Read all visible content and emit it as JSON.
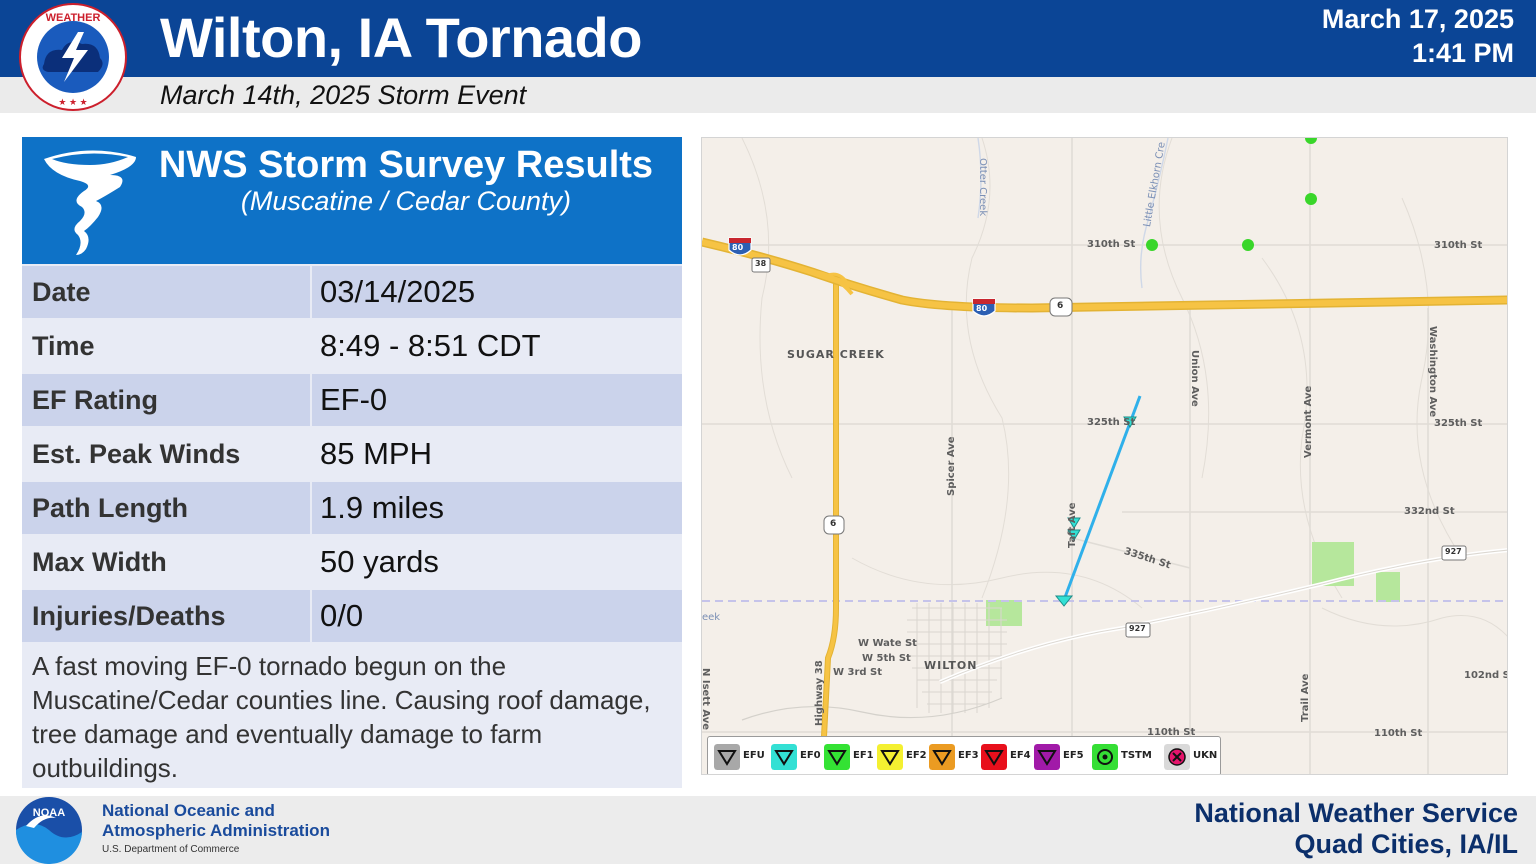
{
  "header": {
    "title": "Wilton, IA Tornado",
    "subtitle": "March 14th, 2025 Storm Event",
    "issued_date": "March 17, 2025",
    "issued_time": "1:41 PM",
    "logo_icon": "nws-logo-icon",
    "bar_color": "#0b4596"
  },
  "survey": {
    "title": "NWS Storm Survey Results",
    "subtitle": "(Muscatine / Cedar County)",
    "icon": "tornado-icon",
    "header_color": "#0e72c7",
    "rows": [
      {
        "label": "Date",
        "value": "03/14/2025"
      },
      {
        "label": "Time",
        "value": "8:49 - 8:51 CDT"
      },
      {
        "label": "EF Rating",
        "value": "EF-0"
      },
      {
        "label": "Est. Peak Winds",
        "value": "85 MPH"
      },
      {
        "label": "Path Length",
        "value": "1.9 miles"
      },
      {
        "label": "Max Width",
        "value": "50 yards"
      },
      {
        "label": "Injuries/Deaths",
        "value": "0/0"
      }
    ],
    "description": "A fast moving EF-0 tornado begun on the Muscatine/Cedar counties line.  Causing roof damage, tree damage and eventually damage to farm outbuildings."
  },
  "map": {
    "roads": {
      "r310": "310th St",
      "r310e": "310th St",
      "r325": "325th St",
      "r325e": "325th St",
      "r332": "332nd St",
      "r335": "335th St",
      "r102": "102nd S",
      "r110": "110th St",
      "r110e": "110th St",
      "spicer": "Spicer Ave",
      "taft": "Taft Ave",
      "union": "Union Ave",
      "vermont": "Vermont Ave",
      "washington": "Washington Ave",
      "trail": "Trail Ave",
      "hwy38": "Highway 38",
      "wwater": "W Wate St",
      "w5th": "W 5th St",
      "w3rd": "W 3rd St",
      "nisett": "N Isett Ave",
      "shield_i80": "80",
      "shield_i80b": "80",
      "shield_38": "38",
      "shield_6a": "6",
      "shield_6b": "6",
      "shield_927a": "927",
      "shield_927b": "927"
    },
    "water": {
      "otter": "Otter Creek",
      "elkhorn": "Little Elkhorn Cre",
      "eek": "eek"
    },
    "places": {
      "sugar_creek": "SUGAR CREEK",
      "wilton": "WILTON"
    },
    "colors": {
      "interstate": "#f6c344",
      "tornado_track": "#2fb0ea",
      "county_line": "#c5c3ea",
      "tstm_dot": "#39d62a",
      "park": "#b6e79c"
    },
    "legend": [
      {
        "label": "EFU",
        "color": "#a8a8a8",
        "type": "triangle"
      },
      {
        "label": "EF0",
        "color": "#33e0d4",
        "type": "triangle"
      },
      {
        "label": "EF1",
        "color": "#34e234",
        "type": "triangle"
      },
      {
        "label": "EF2",
        "color": "#f4f031",
        "type": "triangle"
      },
      {
        "label": "EF3",
        "color": "#eb9b22",
        "type": "triangle"
      },
      {
        "label": "EF4",
        "color": "#e8101c",
        "type": "triangle"
      },
      {
        "label": "EF5",
        "color": "#a11aa8",
        "type": "triangle"
      },
      {
        "label": "TSTM",
        "color": "#35de35",
        "type": "dot"
      },
      {
        "label": "UKN",
        "color": "#e6146c",
        "type": "x"
      }
    ]
  },
  "footer": {
    "noaa_name_line1": "National Oceanic and",
    "noaa_name_line2": "Atmospheric Administration",
    "noaa_dept": "U.S. Department of Commerce",
    "nws_name": "National Weather Service",
    "nws_office": "Quad Cities, IA/IL",
    "noaa_logo": "noaa-logo-icon"
  }
}
